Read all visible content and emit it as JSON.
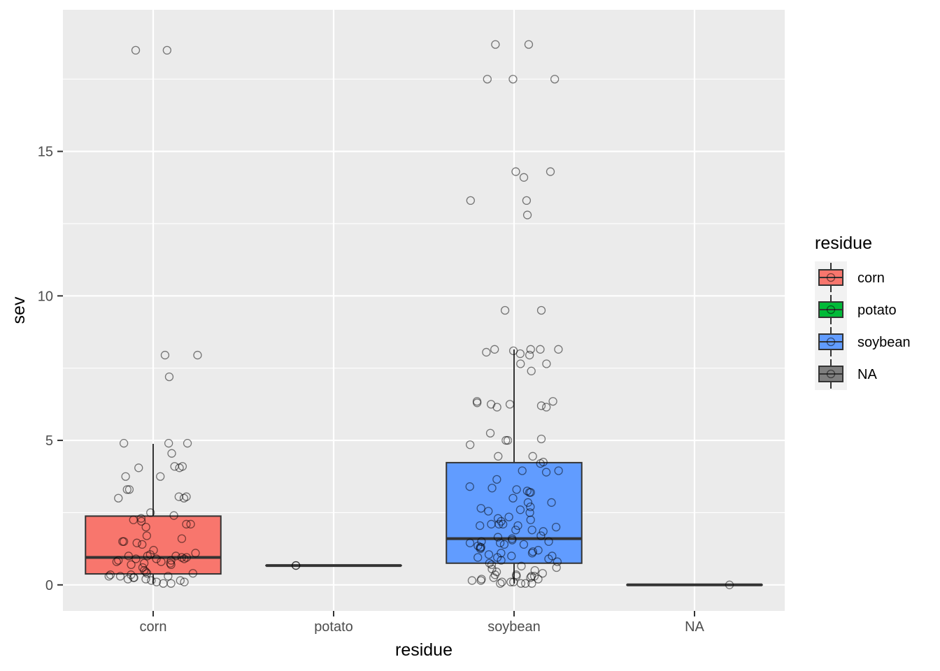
{
  "chart_data": {
    "type": "boxplot",
    "xlabel": "residue",
    "ylabel": "sev",
    "ylim": [
      -0.9,
      19.9
    ],
    "yticks": [
      0,
      5,
      10,
      15
    ],
    "categories": [
      "corn",
      "potato",
      "soybean",
      "NA"
    ],
    "colors": {
      "corn": "#F8766D",
      "potato": "#00BA38",
      "soybean": "#619CFF",
      "NA": "#7F7F7F"
    },
    "boxes": [
      {
        "category": "corn",
        "min": 0.05,
        "q1": 0.38,
        "median": 0.95,
        "q3": 2.38,
        "max": 4.88
      },
      {
        "category": "potato",
        "min": 0.67,
        "q1": 0.67,
        "median": 0.67,
        "q3": 0.67,
        "max": 0.67
      },
      {
        "category": "soybean",
        "min": 0.05,
        "q1": 0.75,
        "median": 1.6,
        "q3": 4.23,
        "max": 8.15
      },
      {
        "category": "NA",
        "min": 0.0,
        "q1": 0.0,
        "median": 0.0,
        "q3": 0.0,
        "max": 0.0
      }
    ],
    "points": [
      {
        "category": "corn",
        "values": [
          18.5,
          18.5,
          7.95,
          7.95,
          7.2,
          4.9,
          4.9,
          4.9,
          4.55,
          4.1,
          4.1,
          4.05,
          4.05,
          3.75,
          3.75,
          3.3,
          3.3,
          3.05,
          3.05,
          3.0,
          3.0,
          2.5,
          2.4,
          2.3,
          2.25,
          2.2,
          2.1,
          2.1,
          2.0,
          1.7,
          1.6,
          1.5,
          1.5,
          1.45,
          1.4,
          1.2,
          1.1,
          1.05,
          1.0,
          1.0,
          1.0,
          0.95,
          0.95,
          0.9,
          0.9,
          0.9,
          0.85,
          0.85,
          0.8,
          0.8,
          0.75,
          0.75,
          0.7,
          0.7,
          0.6,
          0.5,
          0.45,
          0.4,
          0.4,
          0.35,
          0.35,
          0.3,
          0.3,
          0.3,
          0.25,
          0.25,
          0.2,
          0.2,
          0.15,
          0.15,
          0.1,
          0.1,
          0.05,
          0.05
        ]
      },
      {
        "category": "potato",
        "values": [
          0.67,
          0.67
        ]
      },
      {
        "category": "soybean",
        "values": [
          18.7,
          18.7,
          17.5,
          17.5,
          17.5,
          14.3,
          14.3,
          14.1,
          13.3,
          13.3,
          12.8,
          9.5,
          9.5,
          8.15,
          8.15,
          8.15,
          8.15,
          8.1,
          8.05,
          8.0,
          7.95,
          7.65,
          7.65,
          7.4,
          6.35,
          6.35,
          6.3,
          6.25,
          6.25,
          6.2,
          6.15,
          6.15,
          5.25,
          5.05,
          5.0,
          5.0,
          4.85,
          4.45,
          4.45,
          4.25,
          4.2,
          3.95,
          3.95,
          3.9,
          3.65,
          3.4,
          3.35,
          3.3,
          3.25,
          3.2,
          3.2,
          3.0,
          2.85,
          2.85,
          2.7,
          2.65,
          2.6,
          2.55,
          2.5,
          2.35,
          2.3,
          2.25,
          2.2,
          2.1,
          2.1,
          2.1,
          2.05,
          2.05,
          2.0,
          1.9,
          1.9,
          1.85,
          1.7,
          1.65,
          1.6,
          1.55,
          1.5,
          1.5,
          1.45,
          1.45,
          1.4,
          1.4,
          1.35,
          1.3,
          1.3,
          1.25,
          1.2,
          1.15,
          1.1,
          1.1,
          1.05,
          1.0,
          1.0,
          0.95,
          0.95,
          0.9,
          0.85,
          0.8,
          0.75,
          0.7,
          0.65,
          0.6,
          0.55,
          0.5,
          0.45,
          0.4,
          0.35,
          0.35,
          0.3,
          0.3,
          0.3,
          0.25,
          0.25,
          0.2,
          0.2,
          0.15,
          0.15,
          0.1,
          0.1,
          0.1,
          0.05,
          0.05,
          0.05,
          0.05
        ]
      },
      {
        "category": "NA",
        "values": [
          0.0
        ]
      }
    ],
    "legend": {
      "title": "residue",
      "entries": [
        "corn",
        "potato",
        "soybean",
        "NA"
      ],
      "placement": "right"
    },
    "grid": true,
    "panel_background": "#EBEBEB"
  }
}
